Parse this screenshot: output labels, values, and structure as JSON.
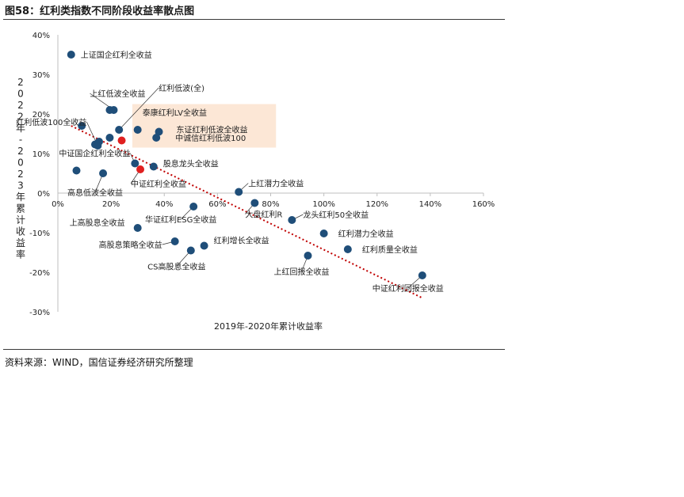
{
  "figure_title": "图58：红利类指数不同阶段收益率散点图",
  "source_note": "资料来源：WIND，国信证券经济研究所整理",
  "colors": {
    "point": "#1f4e79",
    "point_highlight": "#e02020",
    "trendline": "#c00000",
    "highlight_box": "#fbe3cf",
    "text": "#222222",
    "axis": "#bfbfbf"
  },
  "chart_data": {
    "type": "scatter",
    "xlabel": "2019年-2020年累计收益率",
    "ylabel": "2022年-2023年累计收益率",
    "xlim": [
      0,
      1.6
    ],
    "ylim": [
      -0.3,
      0.4
    ],
    "x_ticks": [
      0,
      0.2,
      0.4,
      0.6,
      0.8,
      1.0,
      1.2,
      1.4,
      1.6
    ],
    "x_tick_labels": [
      "0%",
      "20%",
      "40%",
      "60%",
      "80%",
      "100%",
      "120%",
      "140%",
      "160%"
    ],
    "y_ticks": [
      0.4,
      0.3,
      0.2,
      0.1,
      0,
      -0.1,
      -0.2,
      -0.3
    ],
    "y_tick_labels": [
      "40%",
      "30%",
      "20%",
      "10%",
      "0%",
      "-10%",
      "-20%",
      "-30%"
    ],
    "grid": false,
    "legend": "none",
    "trendline": {
      "style": "dotted",
      "from": [
        0.05,
        0.17
      ],
      "to": [
        1.37,
        -0.265
      ]
    },
    "highlight_region": {
      "x": [
        0.28,
        0.82
      ],
      "y": [
        0.115,
        0.225
      ]
    },
    "labeled_points": [
      {
        "label": "上证国企红利全收益",
        "x": 0.05,
        "y": 0.35
      },
      {
        "label": "红利低波100全收益",
        "x": 0.15,
        "y": 0.12
      },
      {
        "label": "上红低波全收益",
        "x": 0.21,
        "y": 0.21
      },
      {
        "label": "红利低波(全)",
        "x": 0.23,
        "y": 0.16
      },
      {
        "label": "泰康红利LV全收益",
        "x": 0.3,
        "y": 0.16
      },
      {
        "label": "东证红利低波全收益",
        "x": 0.38,
        "y": 0.155
      },
      {
        "label": "中诚信红利低波100",
        "x": 0.37,
        "y": 0.14
      },
      {
        "label": "中证国企红利全收益",
        "x": 0.29,
        "y": 0.075
      },
      {
        "label": "股息龙头全收益",
        "x": 0.36,
        "y": 0.067
      },
      {
        "label": "中证红利全收益",
        "x": 0.31,
        "y": 0.06,
        "highlight": true
      },
      {
        "label": "高息低波全收益",
        "x": 0.17,
        "y": 0.05
      },
      {
        "label": "上红潜力全收益",
        "x": 0.68,
        "y": 0.003
      },
      {
        "label": "华证红利ESG全收益",
        "x": 0.51,
        "y": -0.034
      },
      {
        "label": "大盘红利R",
        "x": 0.74,
        "y": -0.025
      },
      {
        "label": "龙头红利50全收益",
        "x": 0.88,
        "y": -0.068
      },
      {
        "label": "上高股息全收益",
        "x": 0.3,
        "y": -0.088
      },
      {
        "label": "红利潜力全收益",
        "x": 1.0,
        "y": -0.102
      },
      {
        "label": "高股息策略全收益",
        "x": 0.44,
        "y": -0.122
      },
      {
        "label": "红利增长全收益",
        "x": 0.55,
        "y": -0.133
      },
      {
        "label": "CS高股息全收益",
        "x": 0.5,
        "y": -0.145
      },
      {
        "label": "红利质量全收益",
        "x": 1.09,
        "y": -0.142
      },
      {
        "label": "上红回报全收益",
        "x": 0.94,
        "y": -0.158
      },
      {
        "label": "中证红利回报全收益",
        "x": 1.37,
        "y": -0.208
      }
    ],
    "unlabeled_points": [
      {
        "x": 0.09,
        "y": 0.17
      },
      {
        "x": 0.07,
        "y": 0.057
      },
      {
        "x": 0.195,
        "y": 0.21
      },
      {
        "x": 0.14,
        "y": 0.123
      },
      {
        "x": 0.155,
        "y": 0.13
      },
      {
        "x": 0.195,
        "y": 0.14
      },
      {
        "x": 0.24,
        "y": 0.133,
        "highlight": true
      }
    ]
  }
}
